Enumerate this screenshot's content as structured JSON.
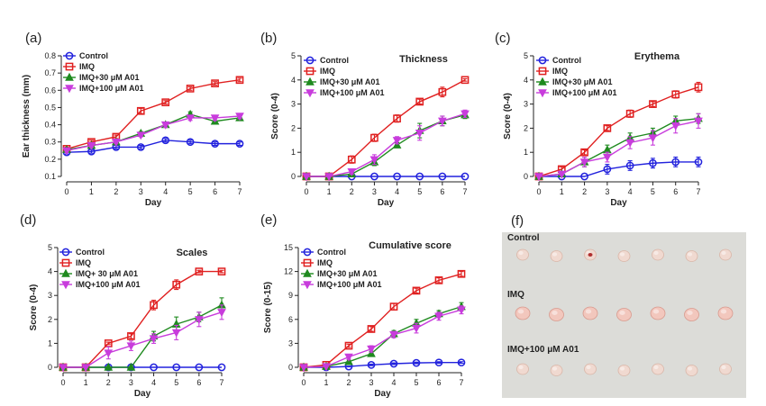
{
  "colors": {
    "Control": "#2222dd",
    "IMQ": "#e02020",
    "IMQ+30 μM A01": "#1f8a1f",
    "IMQ+100 μM A01": "#c83cdc"
  },
  "markers": {
    "Control": "circle",
    "IMQ": "square",
    "IMQ+30 μM A01": "triangle-up",
    "IMQ+100 μM A01": "triangle-down"
  },
  "chart_data": [
    {
      "id": "a",
      "panel_label": "(a)",
      "type": "line",
      "title": "",
      "xlabel": "Day",
      "ylabel": "Ear thickness (mm)",
      "x": [
        0,
        1,
        2,
        3,
        4,
        5,
        6,
        7
      ],
      "xlim": [
        0,
        7
      ],
      "ylim": [
        0.1,
        0.8
      ],
      "yticks": [
        "0.1",
        "0.2",
        "0.3",
        "0.4",
        "0.5",
        "0.6",
        "0.7",
        "0.8"
      ],
      "legend_labels": [
        "Control",
        "IMQ",
        "IMQ+30 μM A01",
        "IMQ+100 μM A01"
      ],
      "series": [
        {
          "name": "Control",
          "values": [
            0.24,
            0.245,
            0.27,
            0.27,
            0.31,
            0.3,
            0.29,
            0.29
          ],
          "errors": [
            0.01,
            0.01,
            0.01,
            0.01,
            0.01,
            0.01,
            0.01,
            0.01
          ]
        },
        {
          "name": "IMQ",
          "values": [
            0.26,
            0.3,
            0.33,
            0.48,
            0.53,
            0.61,
            0.64,
            0.66
          ],
          "errors": [
            0.01,
            0.01,
            0.01,
            0.015,
            0.01,
            0.01,
            0.01,
            0.01
          ]
        },
        {
          "name": "IMQ+30 μM A01",
          "values": [
            0.255,
            0.28,
            0.3,
            0.35,
            0.4,
            0.46,
            0.42,
            0.44
          ],
          "errors": [
            0.01,
            0.01,
            0.01,
            0.01,
            0.015,
            0.015,
            0.015,
            0.015
          ]
        },
        {
          "name": "IMQ+100 μM A01",
          "values": [
            0.25,
            0.28,
            0.3,
            0.34,
            0.4,
            0.44,
            0.44,
            0.45
          ],
          "errors": [
            0.01,
            0.01,
            0.01,
            0.01,
            0.015,
            0.015,
            0.015,
            0.015
          ]
        }
      ]
    },
    {
      "id": "b",
      "panel_label": "(b)",
      "type": "line",
      "title": "Thickness",
      "xlabel": "Day",
      "ylabel": "Score (0-4)",
      "x": [
        0,
        1,
        2,
        3,
        4,
        5,
        6,
        7
      ],
      "xlim": [
        0,
        7
      ],
      "ylim": [
        0,
        5
      ],
      "yticks": [
        "0",
        "1",
        "2",
        "3",
        "4",
        "5"
      ],
      "legend_labels": [
        "Control",
        "IMQ",
        "IMQ+30 μM A01",
        "IMQ+100 μM A01"
      ],
      "series": [
        {
          "name": "Control",
          "values": [
            0,
            0,
            0,
            0,
            0,
            0,
            0,
            0
          ],
          "errors": [
            0,
            0,
            0,
            0,
            0,
            0,
            0,
            0
          ]
        },
        {
          "name": "IMQ",
          "values": [
            0,
            0,
            0.7,
            1.6,
            2.4,
            3.1,
            3.5,
            4.0
          ],
          "errors": [
            0,
            0,
            0.15,
            0.15,
            0.15,
            0.1,
            0.2,
            0.05
          ]
        },
        {
          "name": "IMQ+30 μM A01",
          "values": [
            0,
            0,
            0.1,
            0.6,
            1.3,
            1.9,
            2.3,
            2.55
          ],
          "errors": [
            0,
            0,
            0.05,
            0.15,
            0.1,
            0.3,
            0.2,
            0.15
          ]
        },
        {
          "name": "IMQ+100 μM A01",
          "values": [
            0,
            0,
            0.2,
            0.7,
            1.5,
            1.8,
            2.3,
            2.6
          ],
          "errors": [
            0,
            0,
            0.1,
            0.2,
            0.15,
            0.3,
            0.2,
            0.15
          ]
        }
      ]
    },
    {
      "id": "c",
      "panel_label": "(c)",
      "type": "line",
      "title": "Erythema",
      "xlabel": "Day",
      "ylabel": "Score (0-4)",
      "x": [
        0,
        1,
        2,
        3,
        4,
        5,
        6,
        7
      ],
      "xlim": [
        0,
        7
      ],
      "ylim": [
        0,
        5
      ],
      "yticks": [
        "0",
        "1",
        "2",
        "3",
        "4",
        "5"
      ],
      "legend_labels": [
        "Control",
        "IMQ",
        "IMQ+30 μM A01",
        "IMQ+100 μM A01"
      ],
      "series": [
        {
          "name": "Control",
          "values": [
            0,
            0,
            0,
            0.3,
            0.45,
            0.55,
            0.6,
            0.6
          ],
          "errors": [
            0,
            0,
            0,
            0.2,
            0.2,
            0.2,
            0.2,
            0.2
          ]
        },
        {
          "name": "IMQ",
          "values": [
            0,
            0.3,
            1.0,
            2.0,
            2.6,
            3.0,
            3.4,
            3.7
          ],
          "errors": [
            0,
            0.1,
            0.1,
            0.1,
            0.15,
            0.1,
            0.15,
            0.2
          ]
        },
        {
          "name": "IMQ+30 μM A01",
          "values": [
            0,
            0.1,
            0.6,
            1.1,
            1.6,
            1.8,
            2.3,
            2.4
          ],
          "errors": [
            0,
            0.05,
            0.2,
            0.2,
            0.2,
            0.2,
            0.2,
            0.2
          ]
        },
        {
          "name": "IMQ+100 μM A01",
          "values": [
            0,
            0.1,
            0.6,
            0.8,
            1.4,
            1.6,
            2.1,
            2.3
          ],
          "errors": [
            0,
            0.05,
            0.2,
            0.2,
            0.25,
            0.3,
            0.3,
            0.3
          ]
        }
      ]
    },
    {
      "id": "d",
      "panel_label": "(d)",
      "type": "line",
      "title": "Scales",
      "xlabel": "Day",
      "ylabel": "Score (0-4)",
      "x": [
        0,
        1,
        2,
        3,
        4,
        5,
        6,
        7
      ],
      "xlim": [
        0,
        7
      ],
      "ylim": [
        0,
        5
      ],
      "yticks": [
        "0",
        "1",
        "2",
        "3",
        "4",
        "5"
      ],
      "legend_labels": [
        "Control",
        "IMQ",
        "IMQ+ 30 μM A01",
        "IMQ+100 μM A01"
      ],
      "series": [
        {
          "name": "Control",
          "values": [
            0,
            0,
            0,
            0,
            0,
            0,
            0,
            0
          ],
          "errors": [
            0,
            0,
            0,
            0,
            0,
            0,
            0,
            0
          ]
        },
        {
          "name": "IMQ",
          "values": [
            0,
            0,
            1.0,
            1.3,
            2.6,
            3.45,
            4.0,
            4.0
          ],
          "errors": [
            0,
            0,
            0.05,
            0.1,
            0.2,
            0.2,
            0.05,
            0.05
          ]
        },
        {
          "name": "IMQ+30 μM A01",
          "values": [
            0,
            0,
            0,
            0,
            1.3,
            1.8,
            2.1,
            2.6
          ],
          "errors": [
            0,
            0,
            0,
            0,
            0.2,
            0.3,
            0.2,
            0.3
          ]
        },
        {
          "name": "IMQ+100 μM A01",
          "values": [
            0,
            0,
            0.6,
            0.9,
            1.2,
            1.45,
            2.0,
            2.3
          ],
          "errors": [
            0,
            0,
            0.25,
            0.2,
            0.2,
            0.3,
            0.3,
            0.3
          ]
        }
      ]
    },
    {
      "id": "e",
      "panel_label": "(e)",
      "type": "line",
      "title": "Cumulative score",
      "xlabel": "Day",
      "ylabel": "Score (0-15)",
      "x": [
        0,
        1,
        2,
        3,
        4,
        5,
        6,
        7
      ],
      "xlim": [
        0,
        7
      ],
      "ylim": [
        0,
        15
      ],
      "yticks": [
        "0",
        "3",
        "6",
        "9",
        "12",
        "15"
      ],
      "legend_labels": [
        "Control",
        "IMQ",
        "IMQ+30 μM A01",
        "IMQ+100 μM A01"
      ],
      "series": [
        {
          "name": "Control",
          "values": [
            0,
            0,
            0.1,
            0.3,
            0.45,
            0.55,
            0.6,
            0.6
          ],
          "errors": [
            0,
            0,
            0.05,
            0.1,
            0.1,
            0.1,
            0.1,
            0.1
          ]
        },
        {
          "name": "IMQ",
          "values": [
            0,
            0.3,
            2.7,
            4.8,
            7.6,
            9.6,
            10.9,
            11.7
          ],
          "errors": [
            0,
            0.1,
            0.2,
            0.3,
            0.4,
            0.3,
            0.3,
            0.3
          ]
        },
        {
          "name": "IMQ+30 μM A01",
          "values": [
            0,
            0.1,
            0.7,
            1.7,
            4.2,
            5.5,
            6.7,
            7.6
          ],
          "errors": [
            0,
            0.05,
            0.3,
            0.3,
            0.4,
            0.5,
            0.4,
            0.5
          ]
        },
        {
          "name": "IMQ+100 μM A01",
          "values": [
            0,
            0.1,
            1.3,
            2.3,
            4.1,
            4.9,
            6.4,
            7.2
          ],
          "errors": [
            0,
            0.05,
            0.3,
            0.4,
            0.4,
            0.6,
            0.5,
            0.5
          ]
        }
      ]
    }
  ],
  "photo_panel": {
    "panel_label": "(f)",
    "rows": [
      {
        "label": "Control",
        "count": 7,
        "tone": "pale"
      },
      {
        "label": "IMQ",
        "count": 7,
        "tone": "pink"
      },
      {
        "label": "IMQ+100 μM A01",
        "count": 7,
        "tone": "pale"
      }
    ]
  }
}
